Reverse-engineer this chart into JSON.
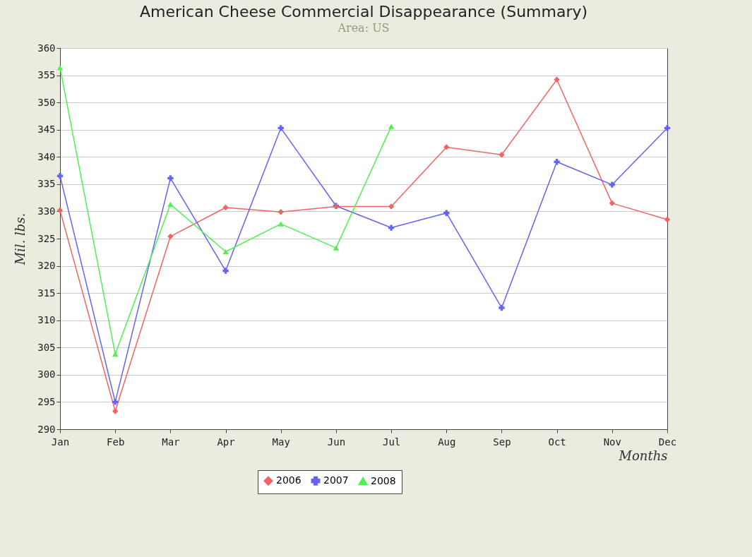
{
  "chart_data": {
    "type": "line",
    "title": "American Cheese Commercial Disappearance (Summary)",
    "subtitle": "Area: US",
    "xlabel": "Months",
    "ylabel": "Mil. lbs.",
    "categories": [
      "Jan",
      "Feb",
      "Mar",
      "Apr",
      "May",
      "Jun",
      "Jul",
      "Aug",
      "Sep",
      "Oct",
      "Nov",
      "Dec"
    ],
    "series": [
      {
        "name": "2006",
        "color": "#f06464",
        "marker": "diamond",
        "values": [
          330.2,
          293.3,
          325.4,
          330.7,
          329.9,
          330.9,
          330.9,
          341.8,
          340.4,
          354.2,
          331.5,
          328.5
        ]
      },
      {
        "name": "2007",
        "color": "#6464f0",
        "marker": "cross",
        "values": [
          336.5,
          295,
          336.1,
          319.1,
          345.3,
          331,
          327,
          329.7,
          312.3,
          339.1,
          334.9,
          345.3
        ]
      },
      {
        "name": "2008",
        "color": "#50f050",
        "marker": "triangle",
        "values": [
          356.4,
          303.8,
          331.3,
          322.6,
          327.7,
          323.3,
          345.6,
          null,
          null,
          null,
          null,
          null
        ]
      }
    ],
    "ylim": [
      290,
      360
    ],
    "yticks": [
      290,
      295,
      300,
      305,
      310,
      315,
      320,
      325,
      330,
      335,
      340,
      345,
      350,
      355,
      360
    ],
    "grid": "y",
    "legend": "bottom",
    "line_style": "solid"
  }
}
